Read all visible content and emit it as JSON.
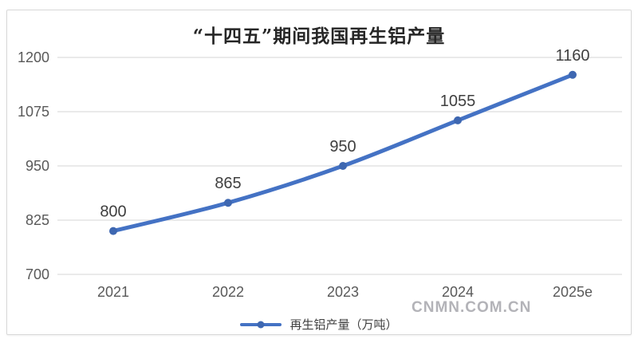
{
  "page": {
    "watermark": "CNMN.COM.CN"
  },
  "chart_data": {
    "type": "line",
    "title": "“十四五”期间我国再生铝产量",
    "categories": [
      "2021",
      "2022",
      "2023",
      "2024",
      "2025e"
    ],
    "series": [
      {
        "name": "再生铝产量（万吨）",
        "values": [
          800,
          865,
          950,
          1055,
          1160
        ]
      }
    ],
    "xlabel": "",
    "ylabel": "",
    "ylim": [
      700,
      1200
    ],
    "yticks": [
      700,
      825,
      950,
      1075,
      1200
    ],
    "grid": true,
    "data_labels": true,
    "line_style": "smooth",
    "legend_position": "bottom",
    "colors": {
      "line": "#4472C4",
      "marker": "#3E67B1",
      "grid": "#dddddd",
      "tick_text": "#595959",
      "data_label_text": "#3f3f3f",
      "title_text": "#262626",
      "watermark": "#b3b3b8",
      "card_border": "#d8d8d8",
      "background": "#ffffff"
    }
  }
}
